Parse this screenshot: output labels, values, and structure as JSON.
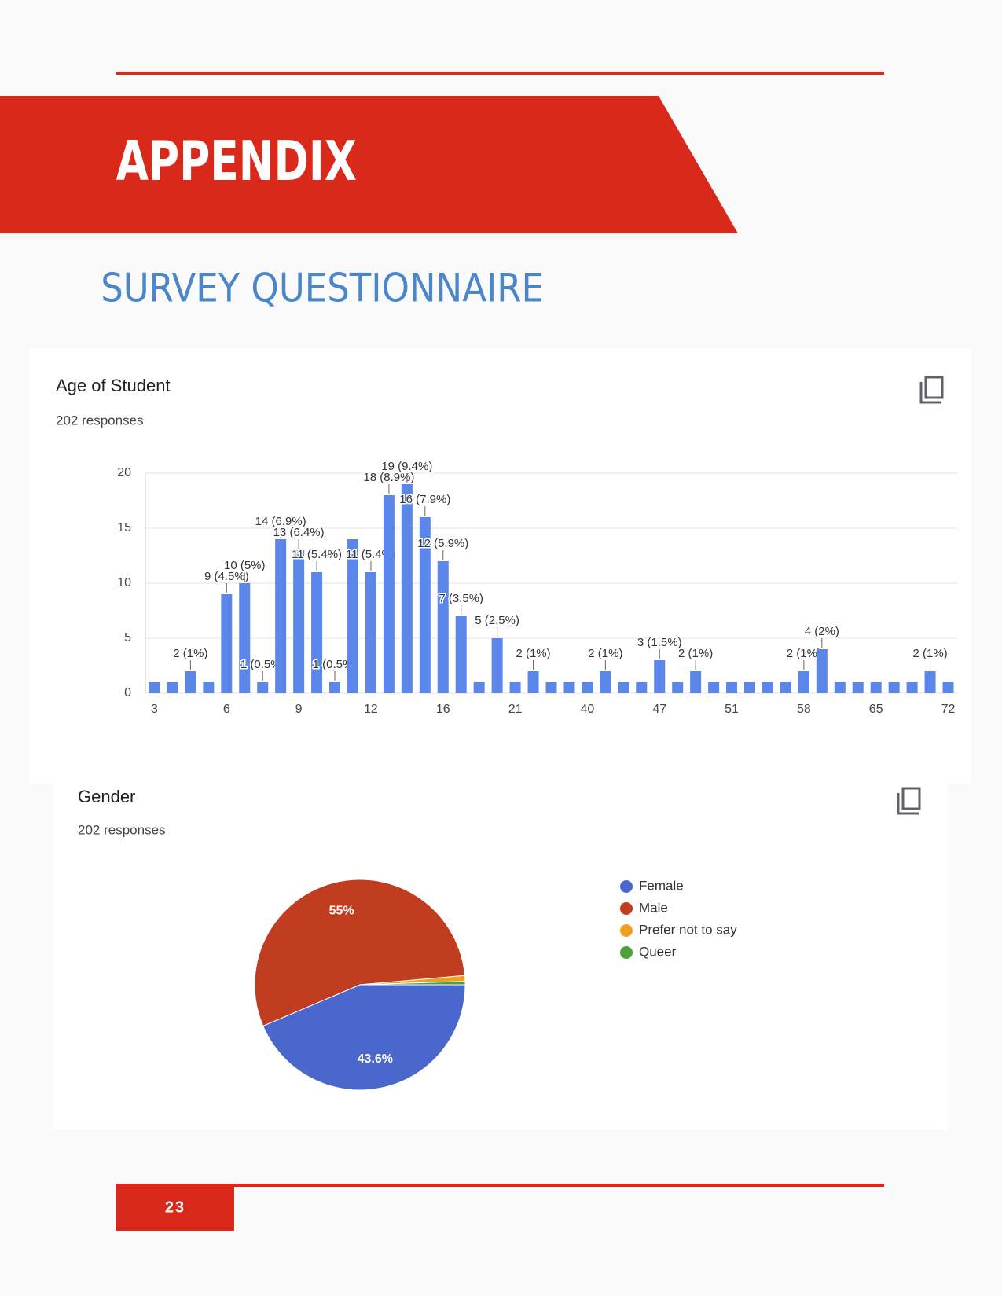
{
  "header": {
    "section": "APPENDIX",
    "subtitle": "SURVEY QUESTIONNAIRE"
  },
  "chart_data": [
    {
      "type": "bar",
      "title": "Age of Student",
      "subtitle": "202 responses",
      "categories": [
        "3",
        null,
        null,
        null,
        "6",
        null,
        null,
        null,
        "9",
        null,
        null,
        null,
        "12",
        null,
        null,
        null,
        "16",
        null,
        null,
        null,
        "21",
        null,
        null,
        null,
        "40",
        null,
        null,
        null,
        "47",
        null,
        null,
        null,
        "51",
        null,
        null,
        null,
        "58",
        null,
        null,
        null,
        "65",
        null,
        null,
        null,
        "72"
      ],
      "values": [
        1,
        1,
        2,
        1,
        9,
        10,
        1,
        14,
        13,
        11,
        1,
        14,
        11,
        18,
        19,
        16,
        12,
        7,
        1,
        5,
        1,
        2,
        1,
        1,
        1,
        2,
        1,
        1,
        3,
        1,
        2,
        1,
        1,
        1,
        1,
        1,
        2,
        4,
        1,
        1,
        1,
        1,
        1,
        2,
        1
      ],
      "value_labels": [
        null,
        null,
        "2 (1%)",
        null,
        "9 (4.5%)",
        "10 (5%)",
        "1 (0.5%)",
        "14 (6.9%)",
        "13 (6.4%)",
        "11 (5.4%)",
        "1 (0.5%)",
        null,
        "11 (5.4%)",
        "18 (8.9%)",
        "19 (9.4%)",
        "16 (7.9%)",
        "12 (5.9%)",
        "7 (3.5%)",
        null,
        "5 (2.5%)",
        null,
        "2 (1%)",
        null,
        null,
        null,
        "2 (1%)",
        null,
        null,
        "3 (1.5%)",
        null,
        "2 (1%)",
        null,
        null,
        null,
        null,
        null,
        "2 (1%)",
        "4 (2%)",
        null,
        null,
        null,
        null,
        null,
        "2 (1%)",
        null
      ],
      "color": "#5b87ea",
      "ylim": [
        0,
        20
      ],
      "yticks": [
        0,
        5,
        10,
        15,
        20
      ],
      "grid": true
    },
    {
      "type": "pie",
      "title": "Gender",
      "subtitle": "202 responses",
      "categories": [
        "Female",
        "Male",
        "Prefer not to say",
        "Queer"
      ],
      "values": [
        43.6,
        55,
        0.9,
        0.5
      ],
      "value_labels": [
        "43.6%",
        "55%",
        null,
        null
      ],
      "colors": [
        "#4a67cc",
        "#c03d1f",
        "#f0a020",
        "#4e9e3a"
      ]
    }
  ],
  "footer": {
    "page": "23"
  }
}
